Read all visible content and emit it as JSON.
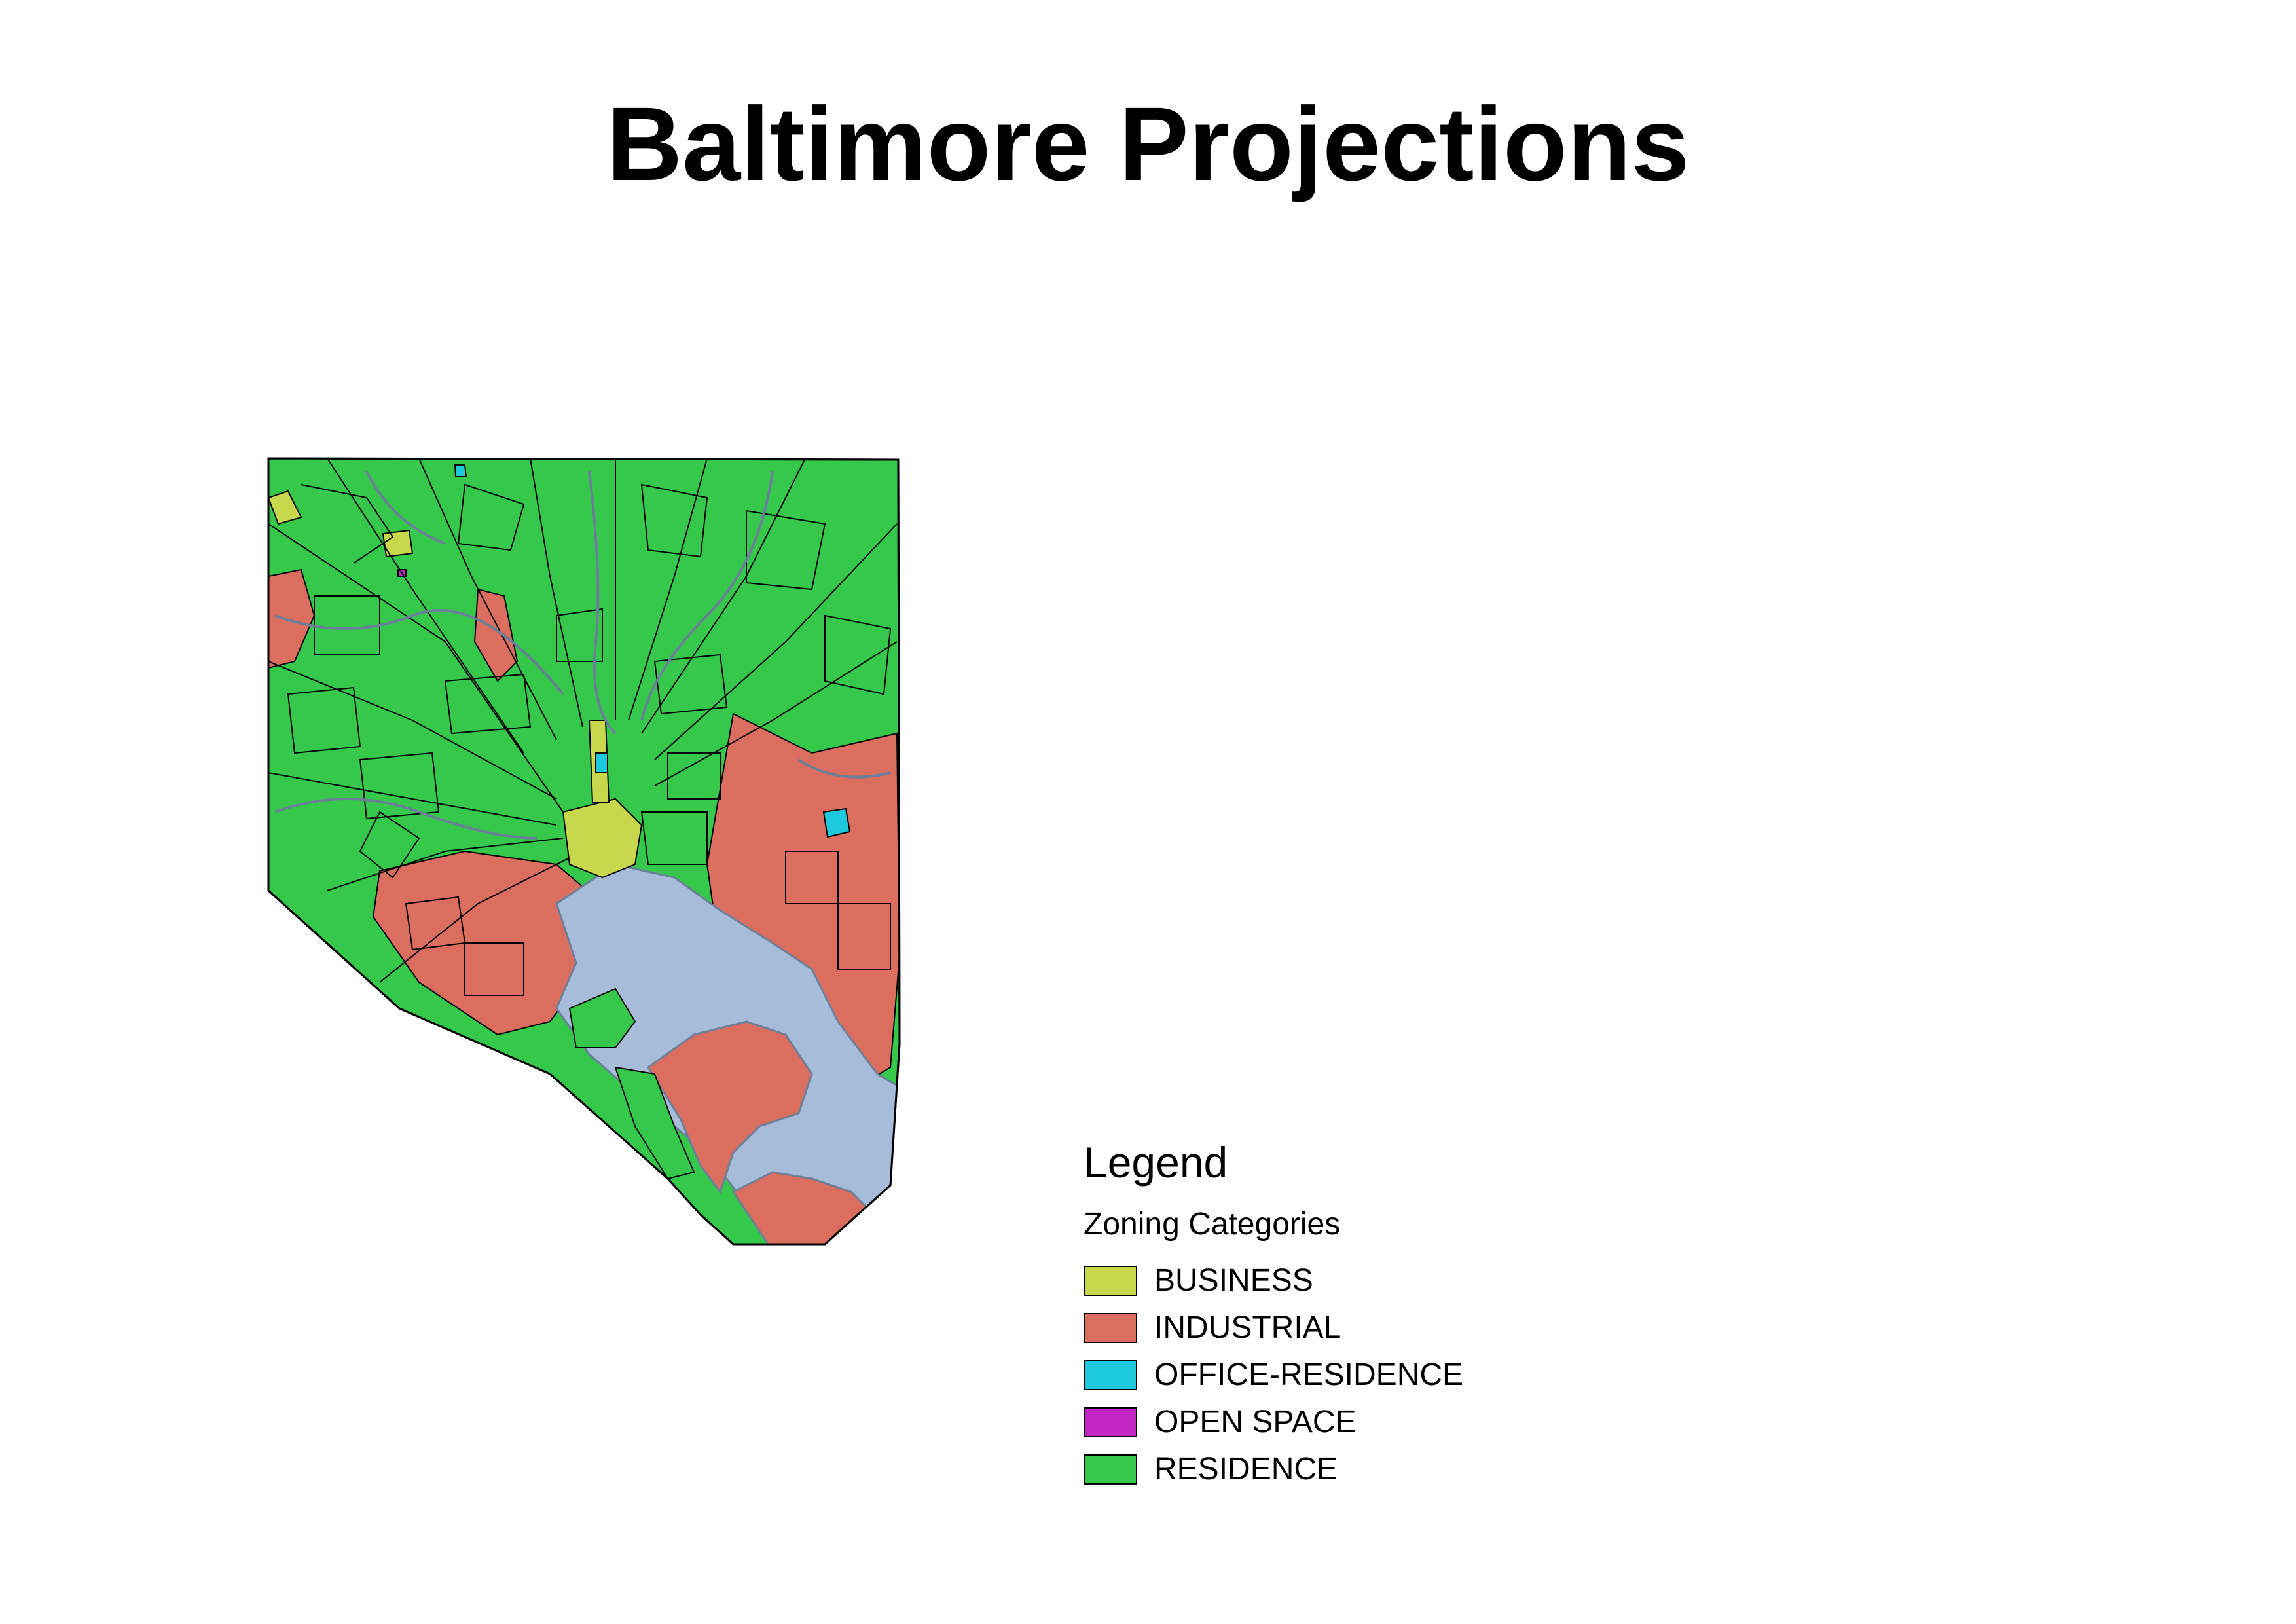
{
  "title": "Baltimore Projections",
  "legend": {
    "title": "Legend",
    "subtitle": "Zoning Categories",
    "items": [
      {
        "label": "BUSINESS",
        "color": "#c8d84c"
      },
      {
        "label": "INDUSTRIAL",
        "color": "#db6e5f"
      },
      {
        "label": "OFFICE-RESIDENCE",
        "color": "#1ec8dd"
      },
      {
        "label": "OPEN SPACE",
        "color": "#c227c4"
      },
      {
        "label": "RESIDENCE",
        "color": "#35c84b"
      }
    ]
  },
  "map": {
    "water_color": "#a6bcd9",
    "outline_color": "#000000"
  }
}
